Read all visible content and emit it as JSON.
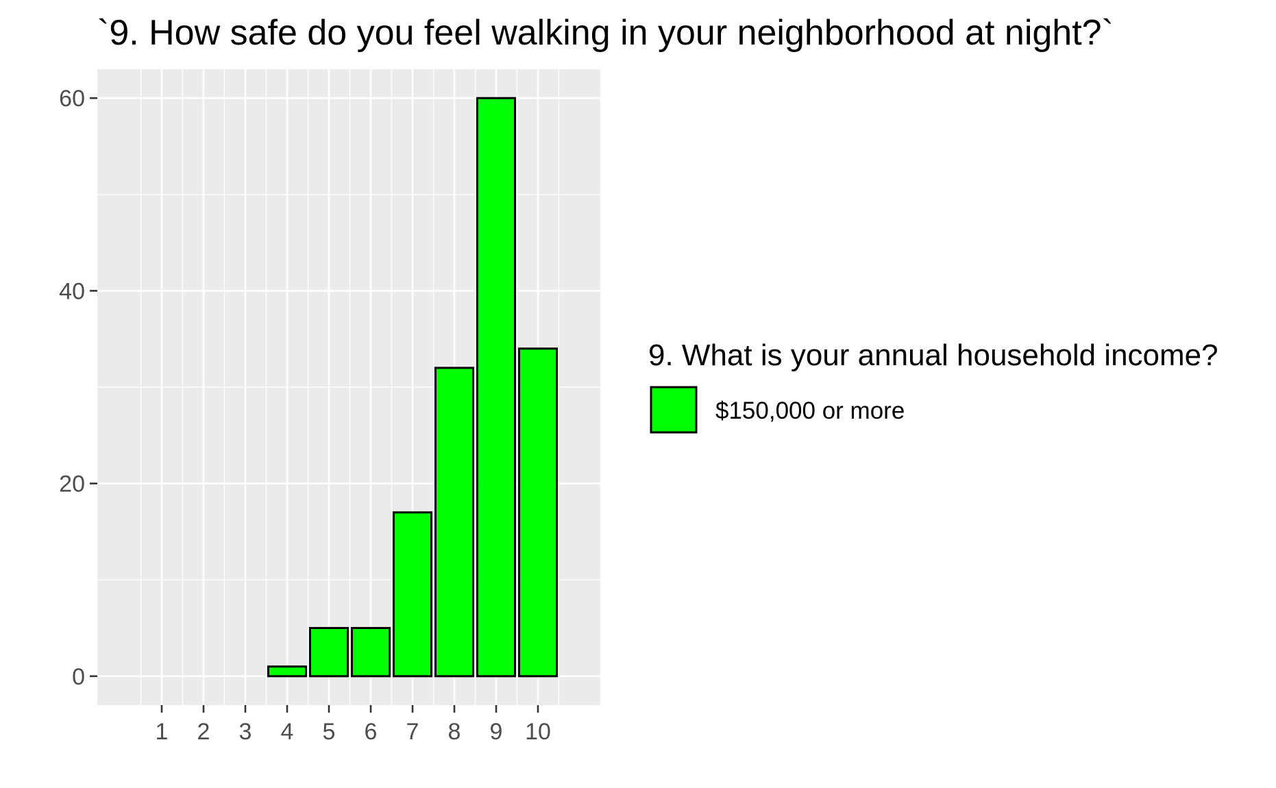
{
  "chart_data": {
    "type": "bar",
    "title": "`9. How safe do you feel walking in your neighborhood at night?`",
    "xlabel": "",
    "ylabel": "",
    "categories": [
      "1",
      "2",
      "3",
      "4",
      "5",
      "6",
      "7",
      "8",
      "9",
      "10"
    ],
    "series": [
      {
        "name": "$150,000 or more",
        "values": [
          0,
          0,
          0,
          1,
          5,
          5,
          17,
          32,
          60,
          34
        ]
      }
    ],
    "ylim": [
      -3,
      63
    ],
    "yticks": [
      0,
      20,
      40,
      60
    ],
    "ytick_labels": [
      "0",
      "20",
      "40",
      "60"
    ],
    "grid": true,
    "legend": {
      "title": "9. What is your annual household income?",
      "placement": "right"
    },
    "colors": {
      "bar_fill": "#00FF00",
      "bar_stroke": "#000000",
      "panel_background": "#EBEBEB",
      "grid_major": "#FFFFFF",
      "tick_text": "#4D4D4D"
    }
  }
}
